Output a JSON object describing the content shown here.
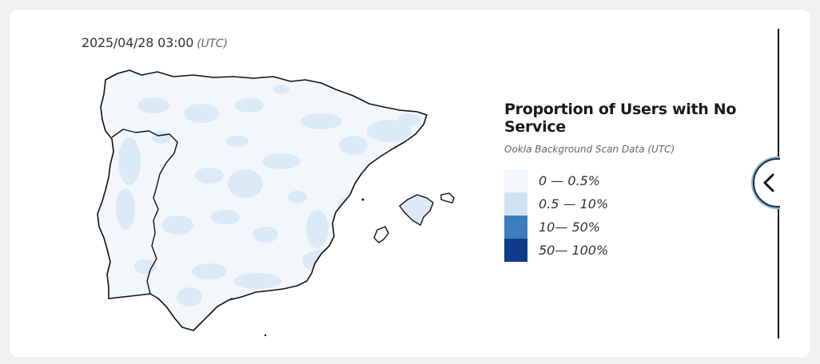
{
  "map": {
    "timestamp": "2025/04/28 03:00",
    "timezone": "(UTC)",
    "region": "Iberian Peninsula",
    "land_color": "#f3f7fc",
    "patch_color": "#dce9f6",
    "hotspot_color": "#2f74b5",
    "outline_color": "#111111"
  },
  "legend": {
    "title": "Proportion of Users with No Service",
    "subtitle": "Ookla Background Scan Data (UTC)",
    "items": [
      {
        "label": "0 — 0.5%",
        "color": "#f4f7fd"
      },
      {
        "label": "0.5 — 10%",
        "color": "#d1e2f2"
      },
      {
        "label": "10— 50%",
        "color": "#3b7ebf"
      },
      {
        "label": "50— 100%",
        "color": "#0c3c8a"
      }
    ]
  },
  "controls": {
    "collapse_icon": "chevron-left-icon"
  }
}
